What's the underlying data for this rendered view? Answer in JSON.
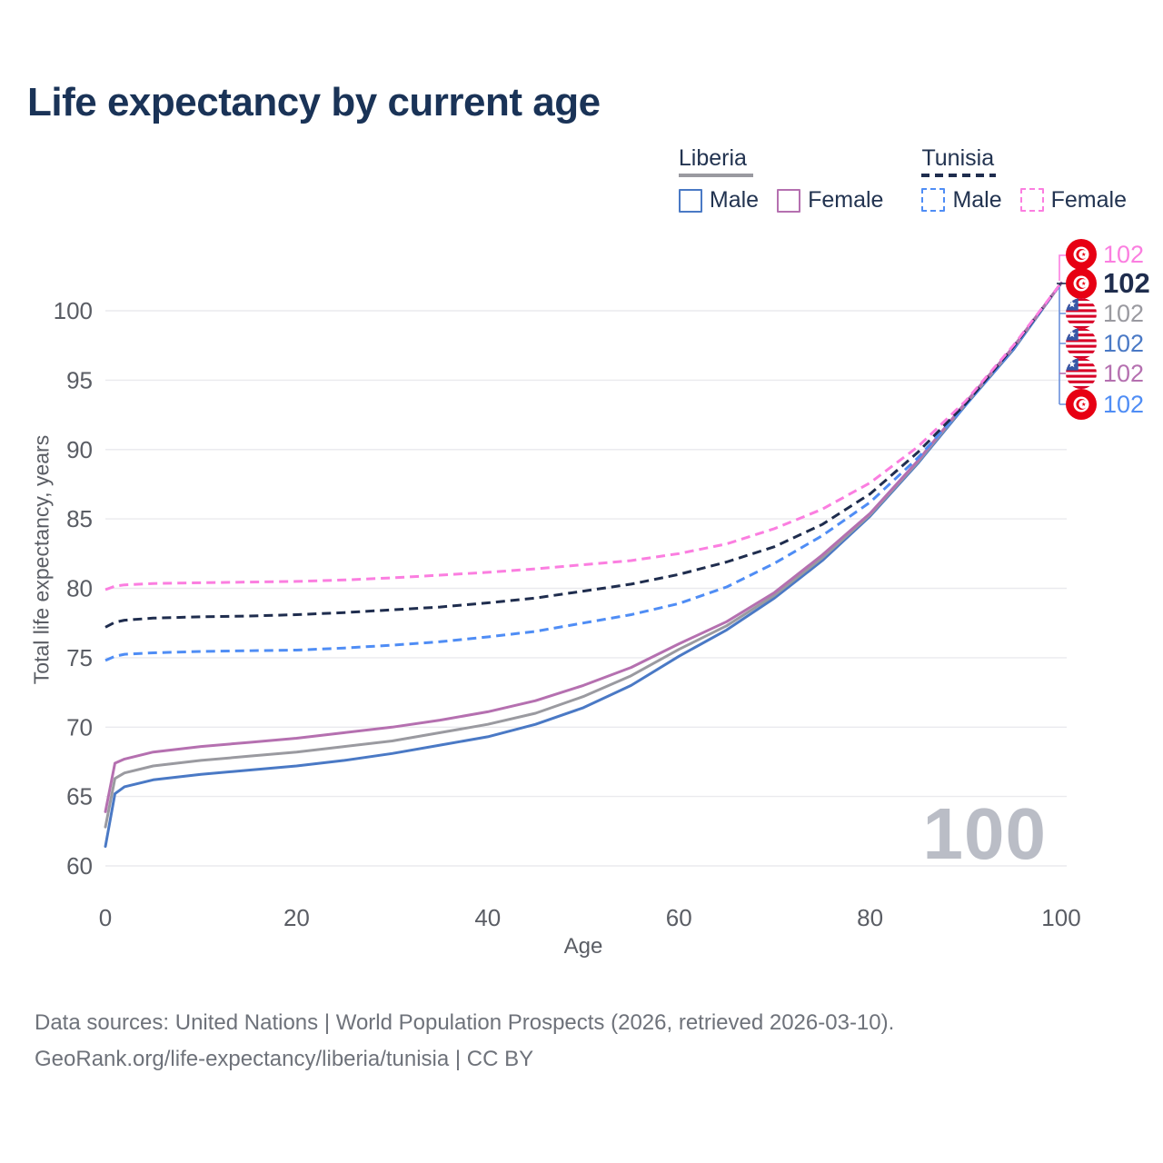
{
  "title": "Life expectancy by current age",
  "legend": {
    "groups": [
      {
        "name": "Liberia",
        "line_color": "#9a9aa0",
        "line_style": "solid",
        "items": [
          {
            "label": "Male",
            "color": "#4a79c5"
          },
          {
            "label": "Female",
            "color": "#b570b0"
          }
        ]
      },
      {
        "name": "Tunisia",
        "line_color": "#1f2d4e",
        "line_style": "dashed",
        "items": [
          {
            "label": "Male",
            "color": "#4f8df5"
          },
          {
            "label": "Female",
            "color": "#fb7ee0"
          }
        ]
      }
    ]
  },
  "chart_data": {
    "type": "line",
    "title": "Life expectancy by current age",
    "xlabel": "Age",
    "ylabel": "Total life expectancy, years",
    "xlim": [
      0,
      100
    ],
    "ylim": [
      60,
      104
    ],
    "xticks": [
      0,
      20,
      40,
      60,
      80,
      100
    ],
    "yticks": [
      60,
      65,
      70,
      75,
      80,
      85,
      90,
      95,
      100
    ],
    "grid": "horizontal-only",
    "legend_position": "top-right",
    "x": [
      0,
      1,
      2,
      5,
      10,
      15,
      20,
      25,
      30,
      35,
      40,
      45,
      50,
      55,
      60,
      65,
      70,
      75,
      80,
      85,
      90,
      95,
      100
    ],
    "series": [
      {
        "name": "Tunisia Female",
        "country": "Tunisia",
        "sex": "Female",
        "color": "#fb7ee0",
        "dashed": true,
        "end_label": "102",
        "values": [
          79.9,
          80.15,
          80.25,
          80.35,
          80.4,
          80.45,
          80.5,
          80.6,
          80.75,
          80.95,
          81.15,
          81.4,
          81.7,
          82.0,
          82.5,
          83.2,
          84.3,
          85.7,
          87.6,
          90.2,
          93.5,
          97.5,
          102
        ]
      },
      {
        "name": "Tunisia Both sexes",
        "country": "Tunisia",
        "sex": "Both",
        "color": "#1f2d4e",
        "dashed": true,
        "end_label": "102",
        "values": [
          77.2,
          77.55,
          77.7,
          77.85,
          77.95,
          78.0,
          78.1,
          78.25,
          78.45,
          78.65,
          78.95,
          79.3,
          79.8,
          80.3,
          81.0,
          81.9,
          83.0,
          84.6,
          86.8,
          89.8,
          93.3,
          97.4,
          102
        ]
      },
      {
        "name": "Tunisia Male",
        "country": "Tunisia",
        "sex": "Male",
        "color": "#4f8df5",
        "dashed": true,
        "end_label": "102",
        "values": [
          74.8,
          75.1,
          75.25,
          75.35,
          75.45,
          75.5,
          75.55,
          75.7,
          75.9,
          76.15,
          76.5,
          76.9,
          77.5,
          78.1,
          78.9,
          80.1,
          81.8,
          83.8,
          86.2,
          89.4,
          93.2,
          97.3,
          102
        ]
      },
      {
        "name": "Liberia Female",
        "country": "Liberia",
        "sex": "Female",
        "color": "#b570b0",
        "dashed": false,
        "end_label": "102",
        "values": [
          63.9,
          67.4,
          67.7,
          68.2,
          68.6,
          68.9,
          69.2,
          69.6,
          70.0,
          70.5,
          71.1,
          71.9,
          73.0,
          74.3,
          76.0,
          77.6,
          79.7,
          82.4,
          85.4,
          89.2,
          93.4,
          97.4,
          102
        ]
      },
      {
        "name": "Liberia Both sexes",
        "country": "Liberia",
        "sex": "Both",
        "color": "#9a9aa0",
        "dashed": false,
        "end_label": "102",
        "values": [
          62.8,
          66.3,
          66.7,
          67.2,
          67.6,
          67.9,
          68.2,
          68.6,
          69.0,
          69.6,
          70.2,
          71.0,
          72.2,
          73.7,
          75.6,
          77.3,
          79.5,
          82.2,
          85.3,
          89.1,
          93.3,
          97.3,
          102
        ]
      },
      {
        "name": "Liberia Male",
        "country": "Liberia",
        "sex": "Male",
        "color": "#4a79c5",
        "dashed": false,
        "end_label": "102",
        "values": [
          61.4,
          65.2,
          65.7,
          66.2,
          66.6,
          66.9,
          67.2,
          67.6,
          68.1,
          68.7,
          69.3,
          70.2,
          71.4,
          73.0,
          75.1,
          77.0,
          79.3,
          82.0,
          85.2,
          89.0,
          93.2,
          97.2,
          102
        ]
      }
    ]
  },
  "end_labels": [
    {
      "flag": "tunisia",
      "flag_ref": "#flag-tn",
      "text": "102",
      "color": "#fb7ee0"
    },
    {
      "flag": "tunisia",
      "flag_ref": "#flag-tn",
      "text": "102",
      "color": "#1f2d4e"
    },
    {
      "flag": "liberia",
      "flag_ref": "#flag-lr",
      "text": "102",
      "color": "#9a9aa0"
    },
    {
      "flag": "liberia",
      "flag_ref": "#flag-lr",
      "text": "102",
      "color": "#4a79c5"
    },
    {
      "flag": "liberia",
      "flag_ref": "#flag-lr",
      "text": "102",
      "color": "#b570b0"
    },
    {
      "flag": "tunisia",
      "flag_ref": "#flag-tn",
      "text": "102",
      "color": "#4f8df5"
    }
  ],
  "watermark": "100",
  "footer": {
    "line1": "Data sources: United Nations | World Population Prospects (2026, retrieved 2026-03-10).",
    "line2": "GeoRank.org/life-expectancy/liberia/tunisia | CC BY"
  }
}
